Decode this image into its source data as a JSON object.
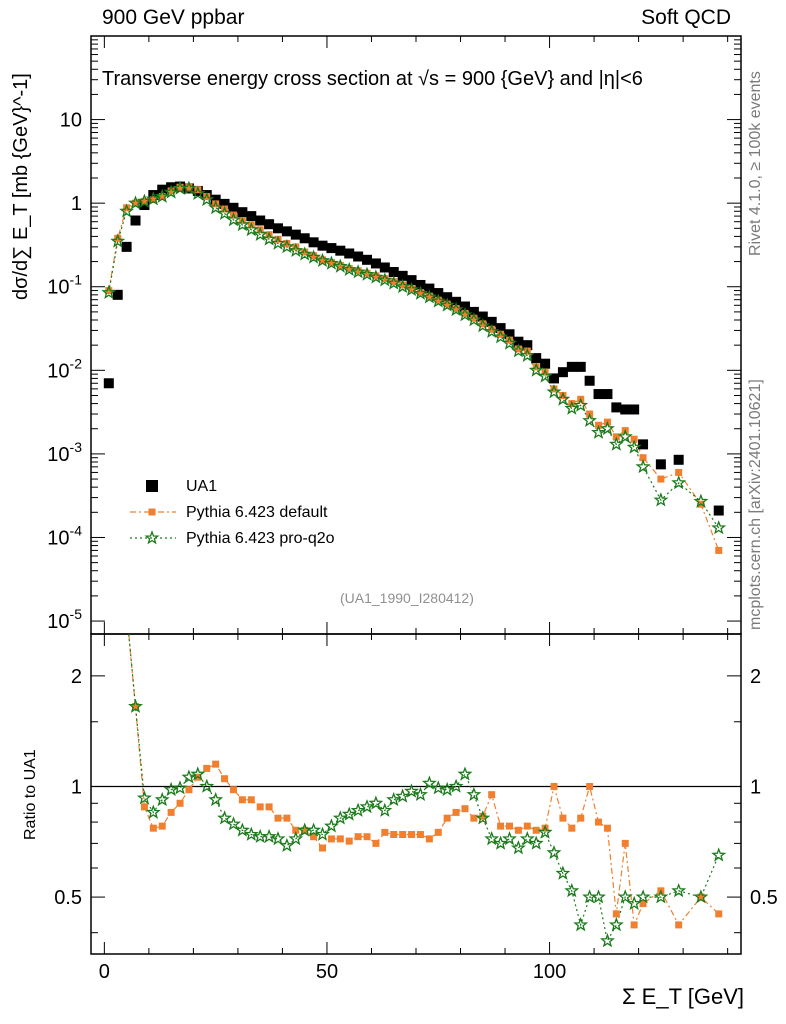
{
  "header": {
    "left": "900 GeV ppbar",
    "right": "Soft QCD"
  },
  "side_text": {
    "top": "Rivet 4.1.0, ≥ 100k events",
    "bottom": "mcplots.cern.ch [arXiv:2401.10621]"
  },
  "analysis_id": "(UA1_1990_I280412)",
  "colors": {
    "ua1": "#000000",
    "default": "#f08030",
    "proq2o": "#1a7a1a"
  },
  "chart_data": {
    "type": "scatter",
    "title": "Transverse energy cross section at √s = 900 {GeV} and |η|<6",
    "xlabel": "Σ E_T [GeV]",
    "ylabel": "dσ/d∑ E_T [mb {GeV}^-1]",
    "ratio_ylabel": "Ratio to UA1",
    "xlim": [
      -3,
      143
    ],
    "ylim": [
      7e-06,
      100
    ],
    "ratio_ylim": [
      0.35,
      2.6
    ],
    "x_ticks": [
      "0",
      "50",
      "100"
    ],
    "y_ticks": [
      "10^-5",
      "10^-4",
      "10^-3",
      "10^-2",
      "10^-1",
      "1",
      "10"
    ],
    "ratio_ticks": [
      "0.5",
      "1",
      "2"
    ],
    "legend": [
      "UA1",
      "Pythia 6.423 default",
      "Pythia 6.423 pro-q2o"
    ],
    "x": [
      1,
      3,
      5,
      7,
      9,
      11,
      13,
      15,
      17,
      19,
      21,
      23,
      25,
      27,
      29,
      31,
      33,
      35,
      37,
      39,
      41,
      43,
      45,
      47,
      49,
      51,
      53,
      55,
      57,
      59,
      61,
      63,
      65,
      67,
      69,
      71,
      73,
      75,
      77,
      79,
      81,
      83,
      85,
      87,
      89,
      91,
      93,
      95,
      97,
      99,
      101,
      103,
      105,
      107,
      109,
      111,
      113,
      115,
      117,
      119,
      121,
      125,
      129,
      134,
      138
    ],
    "series": [
      {
        "name": "UA1",
        "values": [
          0.007,
          0.08,
          0.3,
          0.62,
          0.95,
          1.25,
          1.45,
          1.55,
          1.58,
          1.5,
          1.4,
          1.25,
          1.1,
          0.98,
          0.88,
          0.78,
          0.7,
          0.62,
          0.56,
          0.5,
          0.46,
          0.42,
          0.38,
          0.34,
          0.31,
          0.29,
          0.27,
          0.25,
          0.23,
          0.21,
          0.19,
          0.17,
          0.15,
          0.135,
          0.12,
          0.105,
          0.095,
          0.084,
          0.075,
          0.066,
          0.058,
          0.05,
          0.044,
          0.038,
          0.032,
          0.027,
          0.022,
          0.02,
          0.014,
          0.012,
          0.008,
          0.0095,
          0.011,
          0.011,
          0.0075,
          0.0052,
          0.0052,
          0.0036,
          0.0034,
          0.0034,
          0.0013,
          0.00075,
          0.00085,
          null,
          0.00021
        ]
      },
      {
        "name": "Pythia 6.423 default",
        "values": [
          0.09,
          0.38,
          0.88,
          1.0,
          1.05,
          1.1,
          1.2,
          1.4,
          1.55,
          1.55,
          1.45,
          1.2,
          0.98,
          0.85,
          0.72,
          0.62,
          0.55,
          0.48,
          0.42,
          0.37,
          0.33,
          0.3,
          0.26,
          0.235,
          0.21,
          0.195,
          0.18,
          0.165,
          0.155,
          0.145,
          0.135,
          0.125,
          0.115,
          0.105,
          0.095,
          0.085,
          0.077,
          0.069,
          0.062,
          0.055,
          0.048,
          0.042,
          0.036,
          0.031,
          0.027,
          0.023,
          0.018,
          0.017,
          0.011,
          0.0095,
          0.006,
          0.005,
          0.004,
          0.0045,
          0.003,
          0.0022,
          0.0024,
          0.0016,
          0.0019,
          0.0015,
          0.0009,
          0.0005,
          0.0006,
          0.00025,
          7e-05
        ]
      },
      {
        "name": "Pythia 6.423 pro-q2o",
        "values": [
          0.085,
          0.35,
          0.8,
          1.0,
          1.05,
          1.12,
          1.2,
          1.35,
          1.5,
          1.5,
          1.3,
          1.1,
          0.88,
          0.75,
          0.63,
          0.55,
          0.48,
          0.42,
          0.37,
          0.33,
          0.3,
          0.27,
          0.245,
          0.225,
          0.205,
          0.19,
          0.175,
          0.16,
          0.15,
          0.14,
          0.13,
          0.12,
          0.11,
          0.1,
          0.092,
          0.083,
          0.075,
          0.067,
          0.06,
          0.053,
          0.046,
          0.04,
          0.034,
          0.029,
          0.025,
          0.021,
          0.017,
          0.015,
          0.01,
          0.0085,
          0.0055,
          0.0045,
          0.0035,
          0.0038,
          0.0025,
          0.0018,
          0.002,
          0.0013,
          0.0016,
          0.0012,
          0.0007,
          0.00028,
          0.00045,
          0.00027,
          0.00013
        ]
      }
    ],
    "ratio_series": [
      {
        "name": "Pythia 6.423 default",
        "values": [
          null,
          null,
          null,
          1.65,
          0.88,
          0.77,
          0.78,
          0.85,
          0.9,
          0.98,
          1.06,
          1.12,
          1.15,
          1.05,
          0.98,
          0.92,
          0.92,
          0.88,
          0.88,
          0.82,
          0.82,
          0.76,
          0.76,
          0.73,
          0.68,
          0.72,
          0.72,
          0.71,
          0.73,
          0.73,
          0.7,
          0.75,
          0.74,
          0.74,
          0.74,
          0.74,
          0.72,
          0.75,
          0.82,
          0.85,
          0.87,
          0.82,
          0.83,
          0.95,
          0.78,
          0.78,
          0.76,
          0.78,
          0.76,
          0.77,
          1.0,
          0.82,
          0.77,
          0.82,
          1.0,
          0.8,
          0.77,
          0.45,
          0.7,
          0.42,
          0.48,
          0.52,
          0.42,
          0.5,
          0.45
        ]
      },
      {
        "name": "Pythia 6.423 pro-q2o",
        "values": [
          null,
          null,
          null,
          1.65,
          0.93,
          0.85,
          0.92,
          0.98,
          0.99,
          1.06,
          1.08,
          1.0,
          0.92,
          0.82,
          0.79,
          0.76,
          0.74,
          0.73,
          0.73,
          0.72,
          0.69,
          0.72,
          0.76,
          0.76,
          0.74,
          0.78,
          0.82,
          0.84,
          0.86,
          0.88,
          0.9,
          0.86,
          0.92,
          0.94,
          0.97,
          0.95,
          1.02,
          0.99,
          0.98,
          1.0,
          1.08,
          0.95,
          0.82,
          0.72,
          0.7,
          0.72,
          0.68,
          0.72,
          0.7,
          0.75,
          0.66,
          0.58,
          0.52,
          0.42,
          0.5,
          0.5,
          0.38,
          0.42,
          0.5,
          0.48,
          0.5,
          0.5,
          0.52,
          0.5,
          0.65
        ]
      }
    ]
  }
}
